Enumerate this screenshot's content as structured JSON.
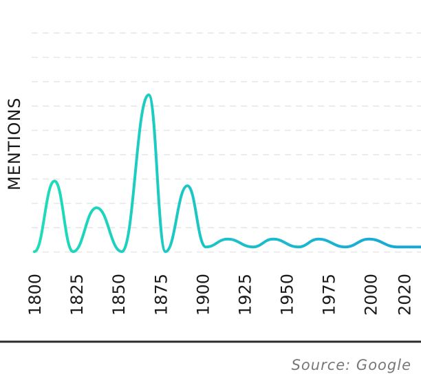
{
  "chart_data": {
    "type": "line",
    "ylabel": "MENTIONS",
    "xlabel": "",
    "xlim": [
      1800,
      2030
    ],
    "ylim": [
      0,
      100
    ],
    "grid": true,
    "x_ticks": [
      "1800",
      "1825",
      "1850",
      "1875",
      "1900",
      "1925",
      "1950",
      "1975",
      "2000",
      "2020"
    ],
    "series": [
      {
        "x": [
          1800,
          1812,
          1823,
          1837,
          1852,
          1868,
          1878,
          1891,
          1902,
          1915,
          1930,
          1942,
          1957,
          1969,
          1985,
          1999,
          2016,
          2030
        ],
        "values": [
          0,
          45,
          0,
          28,
          0,
          100,
          0,
          42,
          3,
          8,
          3,
          8,
          3,
          8,
          3,
          8,
          3,
          3
        ]
      }
    ],
    "gradient_colors": [
      "#1fdcb8",
      "#17a6d8"
    ]
  },
  "footer": {
    "source": "Source: Google"
  }
}
